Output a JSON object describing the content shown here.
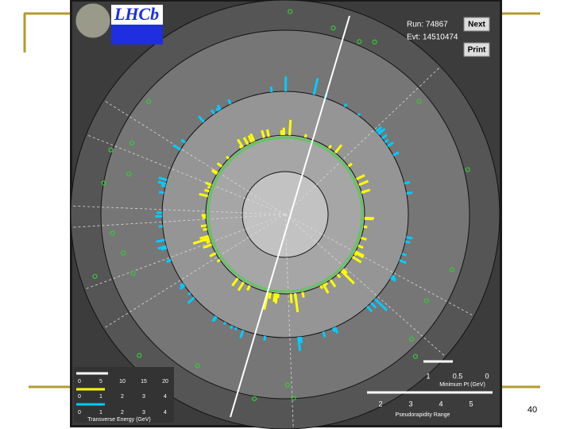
{
  "header": {
    "logo": "LHCb",
    "run": "Run: 74867",
    "event": "Evt: 14510474"
  },
  "buttons": {
    "next": "Next",
    "print": "Print"
  },
  "energy_scales": {
    "scales": [
      {
        "ticks": [
          "0",
          "5",
          "10",
          "15",
          "20"
        ]
      },
      {
        "ticks": [
          "0",
          "1",
          "2",
          "3",
          "4"
        ]
      },
      {
        "ticks": [
          "0",
          "1",
          "2",
          "3",
          "4"
        ]
      }
    ],
    "label": "Transverse Energy (GeV)"
  },
  "pt_scale": {
    "ticks": [
      "1",
      "0.5",
      "0"
    ],
    "label": "Minimum Pt (GeV)"
  },
  "eta_scale": {
    "ticks": [
      "2",
      "3",
      "4",
      "5"
    ],
    "label": "Pseudorapidity Range"
  },
  "slide_number": "40"
}
